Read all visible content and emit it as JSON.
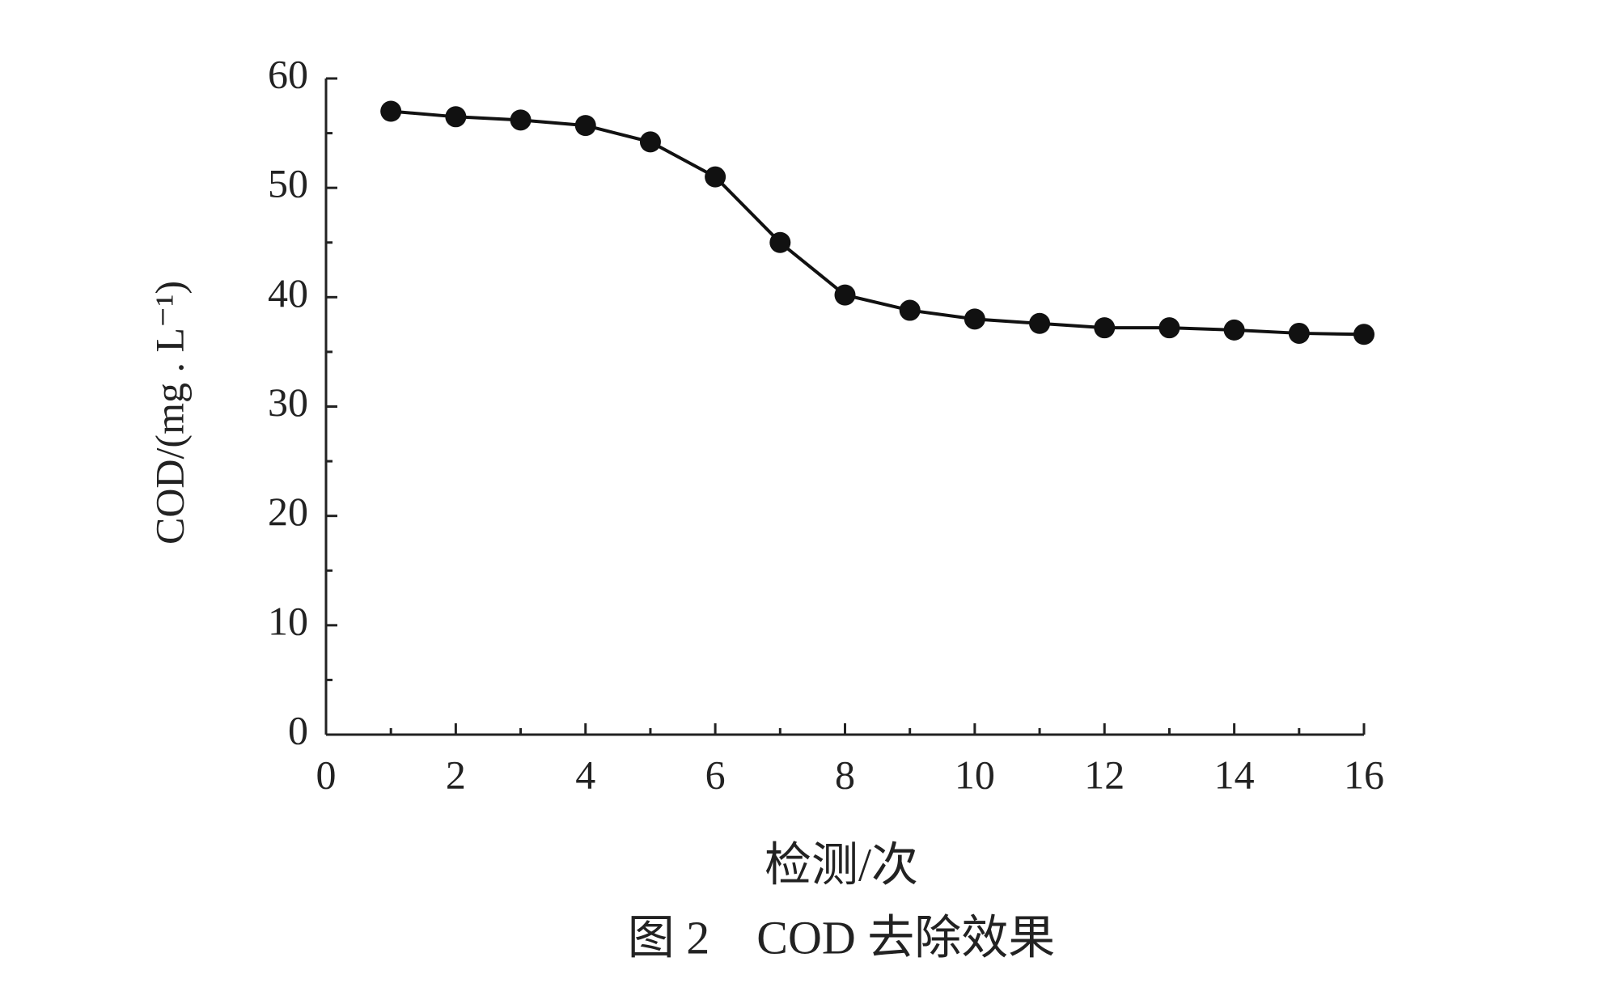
{
  "chart_data": {
    "type": "line",
    "x_label": "检测/次",
    "y_label": "COD/(mg . L⁻¹)",
    "caption": "图 2　COD 去除效果",
    "x": [
      1,
      2,
      3,
      4,
      5,
      6,
      7,
      8,
      9,
      10,
      11,
      12,
      13,
      14,
      15,
      16
    ],
    "series": [
      {
        "color": "#111111",
        "values": [
          57.0,
          56.5,
          56.2,
          55.7,
          54.2,
          51.0,
          45.0,
          40.2,
          38.8,
          38.0,
          37.6,
          37.2,
          37.2,
          37.0,
          36.7,
          36.6
        ]
      }
    ],
    "xlim": [
      0,
      16
    ],
    "xticks": [
      0,
      2,
      4,
      6,
      8,
      10,
      12,
      14,
      16
    ],
    "ylim": [
      0,
      60
    ],
    "yticks": [
      0,
      10,
      20,
      30,
      40,
      50,
      60
    ],
    "grid": false
  }
}
